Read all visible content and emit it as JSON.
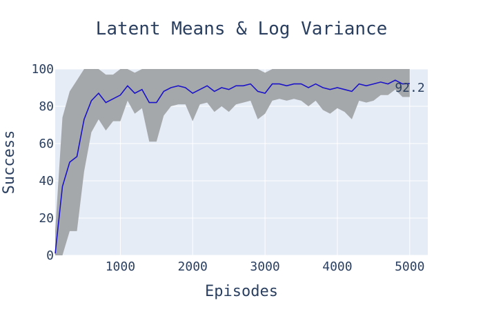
{
  "chart_data": {
    "type": "line",
    "title": "Latent Means & Log Variance",
    "xlabel": "Episodes",
    "ylabel": "Success",
    "xlim": [
      100,
      5250
    ],
    "ylim": [
      0,
      100
    ],
    "xticks": [
      1000,
      2000,
      3000,
      4000,
      5000
    ],
    "yticks": [
      0,
      20,
      40,
      60,
      80,
      100
    ],
    "xtick_labels": [
      "1000",
      "2000",
      "3000",
      "4000",
      "5000"
    ],
    "ytick_labels": [
      "0",
      "20",
      "40",
      "60",
      "80",
      "100"
    ],
    "grid": true,
    "legend": "none",
    "end_label": "92.2",
    "colors": {
      "line": "#1a12c8",
      "band": "#a5a8ab",
      "plot_bg": "#e5ecf6",
      "grid": "#ffffff",
      "text": "#2a3f5f"
    },
    "series": [
      {
        "x": [
          100,
          200,
          300,
          400,
          500,
          600,
          700,
          800,
          900,
          1000,
          1100,
          1200,
          1300,
          1400,
          1500,
          1600,
          1700,
          1800,
          1900,
          2000,
          2100,
          2200,
          2300,
          2400,
          2500,
          2600,
          2700,
          2800,
          2900,
          3000,
          3100,
          3200,
          3300,
          3400,
          3500,
          3600,
          3700,
          3800,
          3900,
          4000,
          4100,
          4200,
          4300,
          4400,
          4500,
          4600,
          4700,
          4800,
          4900,
          5000
        ],
        "mean": [
          1,
          37,
          50,
          53,
          73,
          83,
          87,
          82,
          84,
          86,
          91,
          87,
          89,
          82,
          82,
          88,
          90,
          91,
          90,
          87,
          89,
          91,
          88,
          90,
          89,
          91,
          91,
          92,
          88,
          87,
          92,
          92,
          91,
          92,
          92,
          90,
          92,
          90,
          89,
          90,
          89,
          88,
          92,
          91,
          92,
          93,
          92,
          94,
          92,
          92.2
        ],
        "upper": [
          13,
          74,
          88,
          94,
          100,
          100,
          100,
          97,
          97,
          100,
          100,
          98,
          100,
          100,
          100,
          100,
          100,
          100,
          100,
          100,
          100,
          100,
          100,
          100,
          100,
          100,
          100,
          100,
          100,
          98,
          100,
          100,
          100,
          100,
          100,
          100,
          100,
          100,
          100,
          100,
          100,
          100,
          100,
          100,
          100,
          100,
          100,
          100,
          100,
          100
        ],
        "lower": [
          0,
          0,
          13,
          13,
          45,
          66,
          73,
          67,
          72,
          72,
          83,
          76,
          79,
          61,
          61,
          75,
          80,
          81,
          81,
          72,
          81,
          82,
          77,
          80,
          77,
          81,
          82,
          83,
          73,
          76,
          83,
          84,
          83,
          84,
          83,
          80,
          83,
          78,
          76,
          79,
          77,
          73,
          83,
          82,
          83,
          86,
          86,
          89,
          85,
          85
        ]
      }
    ]
  }
}
